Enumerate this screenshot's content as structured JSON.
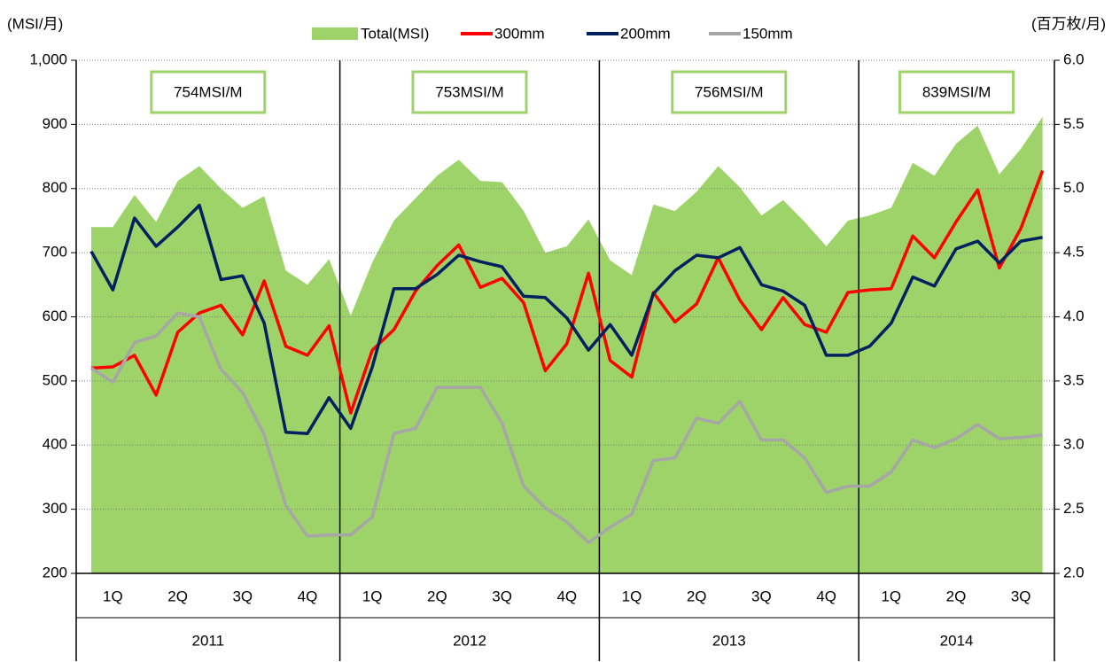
{
  "chart_data": {
    "type": "line",
    "y_label": "(MSI/月)",
    "y2_label": "(百万枚/月)",
    "categories": [
      null,
      null,
      null,
      null,
      null,
      null,
      null,
      null,
      null,
      null,
      null,
      null,
      null,
      null,
      null,
      null,
      null,
      null,
      null,
      null,
      null,
      null,
      null,
      null,
      null,
      null,
      null,
      null,
      null,
      null,
      null,
      null,
      null,
      null,
      null,
      null,
      null,
      null,
      null,
      null,
      null,
      null,
      null,
      null,
      null
    ],
    "x_groups": [
      {
        "label": "2011",
        "quarters": [
          "1Q",
          "2Q",
          "3Q",
          "4Q"
        ]
      },
      {
        "label": "2012",
        "quarters": [
          "1Q",
          "2Q",
          "3Q",
          "4Q"
        ]
      },
      {
        "label": "2013",
        "quarters": [
          "1Q",
          "2Q",
          "3Q",
          "4Q"
        ]
      },
      {
        "label": "2014",
        "quarters": [
          "1Q",
          "2Q",
          "3Q"
        ]
      }
    ],
    "annotations": [
      "754MSI/M",
      "753MSI/M",
      "756MSI/M",
      "839MSI/M"
    ],
    "series": [
      {
        "name": "Total(MSI)",
        "type": "area",
        "axis": "y",
        "color": "#9ed36a",
        "values": [
          740,
          740,
          790,
          748,
          812,
          835,
          800,
          770,
          788,
          672,
          650,
          690,
          602,
          685,
          750,
          785,
          820,
          845,
          812,
          810,
          765,
          700,
          710,
          752,
          688,
          665,
          775,
          765,
          795,
          835,
          802,
          758,
          782,
          748,
          710,
          750,
          758,
          770,
          840,
          820,
          870,
          898,
          822,
          862,
          912
        ]
      },
      {
        "name": "300mm",
        "type": "line",
        "axis": "y2",
        "color": "#ff0000",
        "values": [
          3.6,
          3.61,
          3.7,
          3.39,
          3.88,
          4.03,
          4.09,
          3.86,
          4.28,
          3.77,
          3.7,
          3.93,
          3.25,
          3.74,
          3.9,
          4.2,
          4.4,
          4.56,
          4.23,
          4.3,
          4.11,
          3.58,
          3.79,
          4.34,
          3.66,
          3.53,
          4.19,
          3.96,
          4.1,
          4.46,
          4.13,
          3.9,
          4.15,
          3.94,
          3.88,
          4.19,
          4.21,
          4.22,
          4.63,
          4.46,
          4.74,
          4.99,
          4.38,
          4.69,
          5.14
        ]
      },
      {
        "name": "200mm",
        "type": "line",
        "axis": "y2",
        "color": "#002060",
        "values": [
          4.51,
          4.21,
          4.77,
          4.55,
          4.7,
          4.87,
          4.29,
          4.32,
          3.95,
          3.1,
          3.09,
          3.37,
          3.13,
          3.61,
          4.22,
          4.22,
          4.33,
          4.48,
          4.43,
          4.39,
          4.16,
          4.15,
          3.99,
          3.74,
          3.94,
          3.7,
          4.18,
          4.36,
          4.48,
          4.46,
          4.54,
          4.25,
          4.2,
          4.09,
          3.7,
          3.7,
          3.77,
          3.95,
          4.31,
          4.24,
          4.53,
          4.59,
          4.42,
          4.59,
          4.62
        ]
      },
      {
        "name": "150mm",
        "type": "line",
        "axis": "y2",
        "color": "#a6a6a6",
        "values": [
          3.6,
          3.49,
          3.8,
          3.85,
          4.03,
          4.0,
          3.59,
          3.41,
          3.08,
          2.53,
          2.29,
          2.3,
          2.3,
          2.44,
          3.09,
          3.13,
          3.45,
          3.45,
          3.45,
          3.17,
          2.68,
          2.51,
          2.4,
          2.24,
          2.36,
          2.46,
          2.88,
          2.9,
          3.21,
          3.17,
          3.34,
          3.04,
          3.04,
          2.9,
          2.63,
          2.68,
          2.68,
          2.79,
          3.04,
          2.98,
          3.05,
          3.16,
          3.05,
          3.06,
          3.08
        ]
      }
    ],
    "ylim": [
      200,
      1000
    ],
    "yticks": [
      200,
      300,
      400,
      500,
      600,
      700,
      800,
      900,
      {
        "value": 1000,
        "label": "1,000"
      }
    ],
    "y2lim": [
      2,
      6
    ],
    "y2ticks": [
      {
        "value": 2,
        "label": "2.0"
      },
      2.5,
      {
        "value": 3,
        "label": "3.0"
      },
      3.5,
      {
        "value": 4,
        "label": "4.0"
      },
      4.5,
      {
        "value": 5,
        "label": "5.0"
      },
      5.5,
      {
        "value": 6,
        "label": "6.0"
      }
    ],
    "grid": true,
    "legend": "top"
  }
}
